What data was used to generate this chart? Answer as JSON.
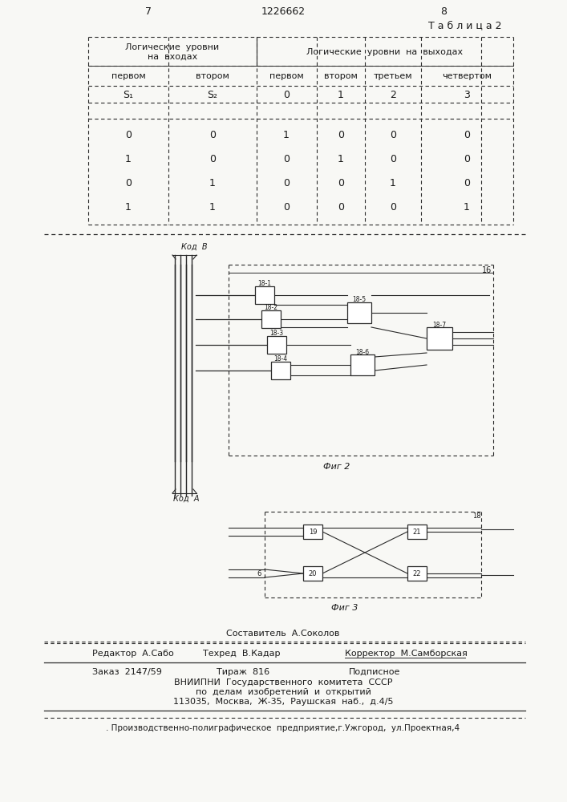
{
  "page_num_left": "7",
  "page_num_center": "1226662",
  "page_num_right": "8",
  "table_title": "Т а б л и ц а 2",
  "header_inputs": "Логические  уровни\nна  входах",
  "header_outputs": "Логические  уровни  на  выходах",
  "col_h1": "первом",
  "col_h2": "втором",
  "col_h3": "первом",
  "col_h4": "втором",
  "col_h5": "третьем",
  "col_h6": "четвертом",
  "sub_h1": "S₁",
  "sub_h2": "S₂",
  "sub_h3": "0",
  "sub_h4": "1",
  "sub_h5": "2",
  "sub_h6": "3",
  "data_rows": [
    [
      "0",
      "0",
      "1",
      "0",
      "0",
      "0"
    ],
    [
      "1",
      "0",
      "0",
      "1",
      "0",
      "0"
    ],
    [
      "0",
      "1",
      "0",
      "0",
      "1",
      "0"
    ],
    [
      "1",
      "1",
      "0",
      "0",
      "0",
      "1"
    ]
  ],
  "kod_b": "Код  В",
  "kod_a": "Код  А",
  "fig2_caption": "Фиг 2",
  "fig3_caption": "Фиг 3",
  "composer": "Составитель  А.Соколов",
  "editor": "Редактор  А.Сабо",
  "techred": "Техред  В.Кадар",
  "corrector": "Корректор  М.Самборская",
  "order": "Заказ  2147/59",
  "tirazh": "Тираж  816",
  "podpisnoe": "Подписное",
  "vniipni": "ВНИИПНИ  Государственного  комитета  СССР",
  "po_delam": "по  делам  изобретений  и  открытий",
  "address": "113035,  Москва,  Ж-35,  Раушская  наб.,  д.4/5",
  "production": ". Производственно-полиграфическое  предприятие,г.Ужгород,  ул.Проектная,4",
  "bg": "#f8f8f5",
  "lc": "#2a2a2a",
  "tc": "#1a1a1a"
}
